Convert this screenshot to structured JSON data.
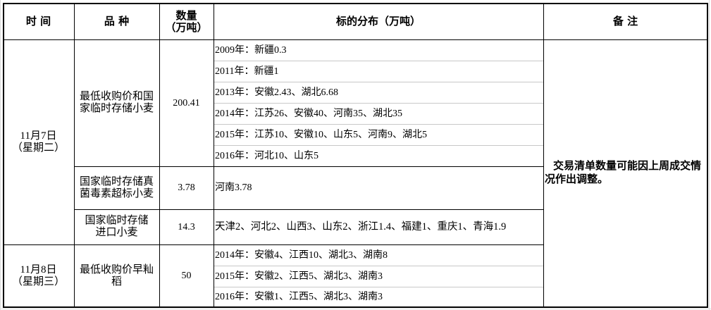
{
  "header": {
    "time": "时 间",
    "variety": "品 种",
    "quantity": "数量\n（万吨）",
    "distribution": "标的分布（万吨）",
    "remarks": "备 注"
  },
  "groups": [
    {
      "date": "11月7日\n（星期二）",
      "items": [
        {
          "variety": "最低收购价和国家临时存储小麦",
          "quantity": "200.41",
          "distribution": [
            "2009年：新疆0.3",
            "2011年：新疆1",
            "2013年：安徽2.43、湖北6.68",
            "2014年：江苏26、安徽40、河南35、湖北35",
            "2015年：江苏10、安徽10、山东5、河南9、湖北5",
            "2016年：河北10、山东5"
          ]
        },
        {
          "variety": "国家临时存储真菌毒素超标小麦",
          "quantity": "3.78",
          "distribution": [
            "河南3.78"
          ]
        },
        {
          "variety": "国家临时存储进口小麦",
          "quantity": "14.3",
          "distribution": [
            "天津2、河北2、山西3、山东2、浙江1.4、福建1、重庆1、青海1.9"
          ]
        }
      ]
    },
    {
      "date": "11月8日\n（星期三）",
      "items": [
        {
          "variety": "最低收购价早籼稻",
          "quantity": "50",
          "distribution": [
            "2014年：安徽4、江西10、湖北3、湖南8",
            "2015年：安徽2、江西5、湖北3、湖南3",
            "2016年：安徽1、江西5、湖北3、湖南3"
          ]
        }
      ]
    }
  ],
  "remarks": "交易清单数量可能因上周成交情况作出调整。"
}
